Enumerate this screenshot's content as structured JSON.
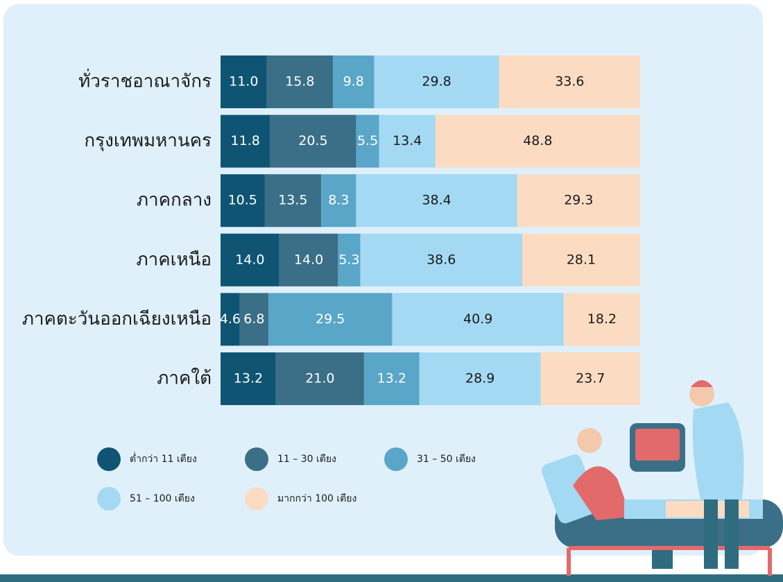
{
  "chart_data": {
    "type": "stacked_bar_horizontal",
    "categories": [
      "ทั่วราชอาณาจักร",
      "กรุงเทพมหานคร",
      "ภาคกลาง",
      "ภาคเหนือ",
      "ภาคตะวันออกเฉียงเหนือ",
      "ภาคใต้"
    ],
    "xlim": [
      0,
      100
    ],
    "series": [
      {
        "name": "ต่ำกว่า 11 เตียง",
        "color": "#0f5573",
        "values": [
          11.0,
          11.8,
          10.5,
          14.0,
          4.6,
          13.2
        ],
        "value_labels": [
          "11.0",
          "11.8",
          "10.5",
          "14.0",
          "4.6",
          "13.2"
        ]
      },
      {
        "name": "11 – 30 เตียง",
        "color": "#3a6f87",
        "values": [
          15.8,
          20.5,
          13.5,
          14.0,
          6.8,
          21.0
        ],
        "value_labels": [
          "15.8",
          "20.5",
          "13.5",
          "14.0",
          "6.8",
          "21.0"
        ]
      },
      {
        "name": "31 – 50 เตียง",
        "color": "#5aa6c8",
        "values": [
          9.8,
          5.5,
          8.3,
          5.3,
          29.5,
          13.2
        ],
        "value_labels": [
          "9.8",
          "5.5",
          "8.3",
          "5.3",
          "29.5",
          "13.2"
        ]
      },
      {
        "name": "51 – 100 เตียง",
        "color": "#a4d9f3",
        "values": [
          29.8,
          13.4,
          38.4,
          38.6,
          40.9,
          28.9
        ],
        "value_labels": [
          "29.8",
          "13.4",
          "38.4",
          "38.6",
          "40.9",
          "28.9"
        ]
      },
      {
        "name": "มากกว่า 100 เตียง",
        "color": "#fbdcc3",
        "values": [
          33.6,
          48.8,
          29.3,
          28.1,
          18.2,
          23.7
        ],
        "value_labels": [
          "33.6",
          "48.8",
          "29.3",
          "28.1",
          "18.2",
          "23.7"
        ]
      }
    ],
    "legend": "bottom-left"
  }
}
